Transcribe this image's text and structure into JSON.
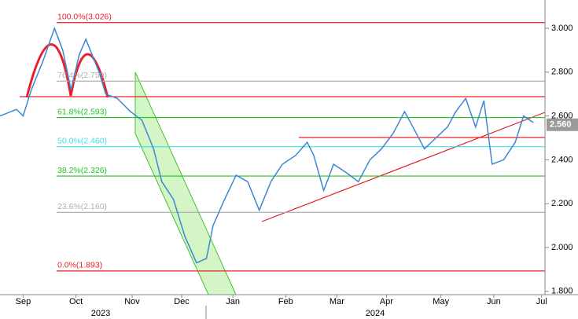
{
  "chart_data": {
    "type": "line",
    "x": [
      0,
      10,
      14,
      19,
      26,
      33,
      38,
      43,
      48,
      52,
      60,
      64,
      71,
      79,
      86,
      93,
      98,
      105,
      112,
      119,
      125,
      129,
      136,
      143,
      150,
      157,
      164,
      171,
      179,
      186,
      190,
      196,
      202,
      210,
      217,
      224,
      231,
      238,
      245,
      250,
      257,
      264,
      271,
      276,
      282,
      288,
      293,
      298,
      305,
      312,
      317,
      323
    ],
    "series": [
      {
        "color": "#3d86d4",
        "values": [
          2.6,
          2.63,
          2.6,
          2.72,
          2.85,
          3.0,
          2.9,
          2.72,
          2.88,
          2.95,
          2.8,
          2.7,
          2.68,
          2.62,
          2.58,
          2.45,
          2.3,
          2.22,
          2.05,
          1.93,
          1.95,
          2.1,
          2.22,
          2.33,
          2.3,
          2.17,
          2.3,
          2.38,
          2.42,
          2.48,
          2.42,
          2.26,
          2.38,
          2.34,
          2.3,
          2.4,
          2.45,
          2.52,
          2.62,
          2.55,
          2.45,
          2.5,
          2.55,
          2.62,
          2.68,
          2.55,
          2.67,
          2.38,
          2.4,
          2.48,
          2.6,
          2.57
        ]
      }
    ],
    "xlim": [
      0,
      330
    ],
    "xticks": [
      {
        "value": 14,
        "label": "Sep"
      },
      {
        "value": 46,
        "label": "Oct"
      },
      {
        "value": 80,
        "label": "Nov"
      },
      {
        "value": 110,
        "label": "Dec"
      },
      {
        "value": 141,
        "label": "Jan"
      },
      {
        "value": 173,
        "label": "Feb"
      },
      {
        "value": 204,
        "label": "Mar"
      },
      {
        "value": 234,
        "label": "Apr"
      },
      {
        "value": 267,
        "label": "May"
      },
      {
        "value": 299,
        "label": "Jun"
      },
      {
        "value": 328,
        "label": "Jul"
      }
    ],
    "years": [
      "2023",
      "2024"
    ],
    "ylim": [
      1.785,
      3.129
    ],
    "yticks": [
      {
        "value": 1.8,
        "label": "1.800"
      },
      {
        "value": 2.0,
        "label": "2.000"
      },
      {
        "value": 2.2,
        "label": "2.200"
      },
      {
        "value": 2.4,
        "label": "2.400"
      },
      {
        "value": 2.6,
        "label": "2.600"
      },
      {
        "value": 2.8,
        "label": "2.800"
      },
      {
        "value": 3.0,
        "label": "3.000"
      }
    ],
    "last_price": {
      "value": 2.56,
      "label": "2.560"
    },
    "levels": [
      {
        "value": 3.026,
        "label": "100.0%(3.026)",
        "color": "#e8202a"
      },
      {
        "value": 2.759,
        "label": "76.4%(2.759)",
        "color": "#b0b0b0"
      },
      {
        "value": 2.593,
        "label": "61.8%(2.593)",
        "color": "#22c422"
      },
      {
        "value": 2.46,
        "label": "50.0%(2.460)",
        "color": "#3fe0e8"
      },
      {
        "value": 2.326,
        "label": "38.2%(2.326)",
        "color": "#22c422"
      },
      {
        "value": 2.16,
        "label": "23.6%(2.160)",
        "color": "#b0b0b0"
      },
      {
        "value": 1.893,
        "label": "0.0%(1.893)",
        "color": "#e8202a"
      }
    ]
  }
}
